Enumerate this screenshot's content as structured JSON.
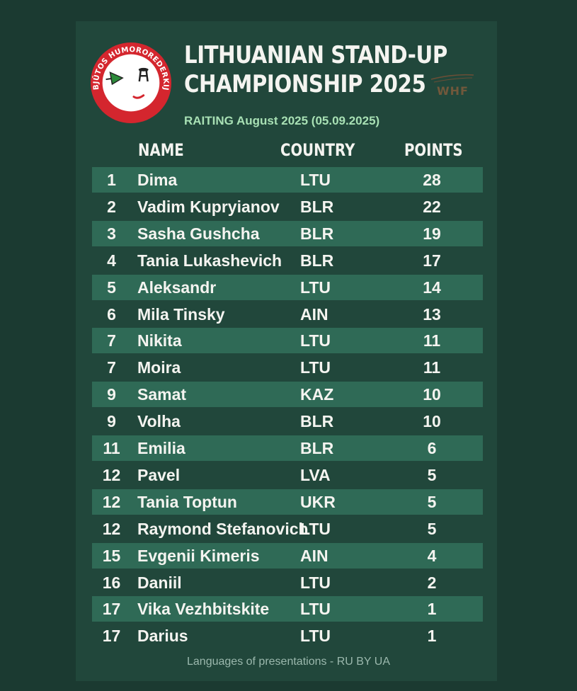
{
  "logo": {
    "text": "UBJŪTOS HUMOROREDERKIJA"
  },
  "header": {
    "title_line1": "LITHUANIAN STAND-UP",
    "title_line2": "CHAMPIONSHIP 2025",
    "subtitle": "RAITING August 2025 (05.09.2025)",
    "partner_logo_text": "WHF"
  },
  "table": {
    "headers": {
      "name": "NAME",
      "country": "COUNTRY",
      "points": "POINTS"
    },
    "rows": [
      {
        "rank": "1",
        "name": "Dima",
        "country": "LTU",
        "points": "28"
      },
      {
        "rank": "2",
        "name": "Vadim Kupryianov",
        "country": "BLR",
        "points": "22"
      },
      {
        "rank": "3",
        "name": "Sasha Gushcha",
        "country": "BLR",
        "points": "19"
      },
      {
        "rank": "4",
        "name": "Tania Lukashevich",
        "country": "BLR",
        "points": "17"
      },
      {
        "rank": "5",
        "name": "Aleksandr",
        "country": "LTU",
        "points": "14"
      },
      {
        "rank": "6",
        "name": "Mila Tinsky",
        "country": "AIN",
        "points": "13"
      },
      {
        "rank": "7",
        "name": "Nikita",
        "country": "LTU",
        "points": "11"
      },
      {
        "rank": "7",
        "name": "Moira",
        "country": "LTU",
        "points": "11"
      },
      {
        "rank": "9",
        "name": "Samat",
        "country": "KAZ",
        "points": "10"
      },
      {
        "rank": "9",
        "name": "Volha",
        "country": "BLR",
        "points": "10"
      },
      {
        "rank": "11",
        "name": "Emilia",
        "country": "BLR",
        "points": "6"
      },
      {
        "rank": "12",
        "name": "Pavel",
        "country": "LVA",
        "points": "5"
      },
      {
        "rank": "12",
        "name": "Tania Toptun",
        "country": "UKR",
        "points": "5"
      },
      {
        "rank": "12",
        "name": "Raymond Stefanovich",
        "country": "LTU",
        "points": "5"
      },
      {
        "rank": "15",
        "name": "Evgenii Kimeris",
        "country": "AIN",
        "points": "4"
      },
      {
        "rank": "16",
        "name": "Daniil",
        "country": "LTU",
        "points": "2"
      },
      {
        "rank": "17",
        "name": "Vika Vezhbitskite",
        "country": "LTU",
        "points": "1"
      },
      {
        "rank": "17",
        "name": "Darius",
        "country": "LTU",
        "points": "1"
      }
    ]
  },
  "footer": {
    "text": "Languages of presentations - RU BY UA"
  },
  "colors": {
    "background": "#1b3a31",
    "card": "#21473b",
    "row_shade": "#2f6a56",
    "subtitle": "#a8e0b4",
    "logo_red": "#d4262e"
  }
}
